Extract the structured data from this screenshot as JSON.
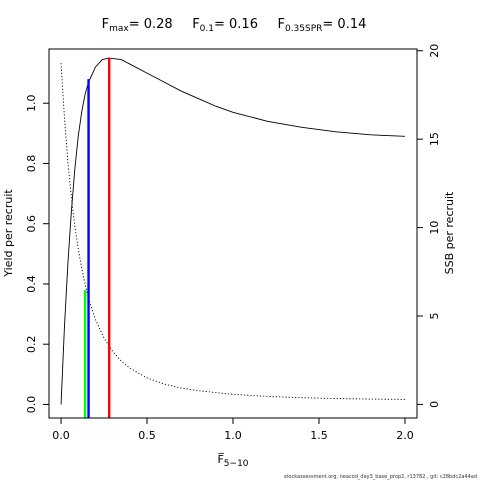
{
  "chart_data": {
    "type": "line",
    "title_parts": [
      {
        "label": "F",
        "sub": "max",
        "value": "= 0.28"
      },
      {
        "label": "F",
        "sub": "0.1",
        "value": "= 0.16"
      },
      {
        "label": "F",
        "sub": "0.35SPR",
        "value": "= 0.14"
      }
    ],
    "xlabel": "F",
    "xlabel_sub": "5−10",
    "ylabel_left": "Yield per recruit",
    "ylabel_right": "SSB per recruit",
    "xlim": [
      -0.07,
      2.07
    ],
    "ylim_left": [
      -0.045,
      1.18
    ],
    "ylim_right": [
      -0.77,
      20.1
    ],
    "x_ticks": [
      0,
      0.5,
      1,
      1.5,
      2
    ],
    "x_tick_labels": [
      "0.0",
      "0.5",
      "1.0",
      "1.5",
      "2.0"
    ],
    "y_left_ticks": [
      0,
      0.2,
      0.4,
      0.6,
      0.8,
      1.0
    ],
    "y_left_tick_labels": [
      "0.0",
      "0.2",
      "0.4",
      "0.6",
      "0.8",
      "1.0"
    ],
    "y_right_ticks": [
      0,
      5,
      10,
      15,
      20
    ],
    "y_right_tick_labels": [
      "0",
      "5",
      "10",
      "15",
      "20"
    ],
    "series": [
      {
        "key": "ypr",
        "axis": "left",
        "style": "solid",
        "x": [
          0,
          0.02,
          0.04,
          0.06,
          0.08,
          0.1,
          0.12,
          0.14,
          0.16,
          0.2,
          0.24,
          0.28,
          0.35,
          0.4,
          0.5,
          0.6,
          0.7,
          0.8,
          0.9,
          1.0,
          1.2,
          1.4,
          1.6,
          1.8,
          2.0
        ],
        "y": [
          0.0,
          0.26,
          0.47,
          0.64,
          0.78,
          0.89,
          0.97,
          1.03,
          1.07,
          1.12,
          1.145,
          1.15,
          1.145,
          1.13,
          1.1,
          1.07,
          1.04,
          1.015,
          0.99,
          0.97,
          0.94,
          0.92,
          0.905,
          0.895,
          0.89
        ]
      },
      {
        "key": "spr",
        "axis": "right",
        "style": "dotted",
        "x": [
          0,
          0.02,
          0.04,
          0.06,
          0.08,
          0.1,
          0.12,
          0.14,
          0.16,
          0.2,
          0.25,
          0.3,
          0.35,
          0.4,
          0.5,
          0.6,
          0.7,
          0.8,
          1.0,
          1.2,
          1.4,
          1.6,
          1.8,
          2.0
        ],
        "y": [
          19.3,
          16.2,
          13.7,
          11.7,
          10.1,
          8.8,
          7.7,
          6.8,
          6.0,
          4.8,
          3.75,
          3.0,
          2.45,
          2.05,
          1.5,
          1.15,
          0.92,
          0.77,
          0.57,
          0.45,
          0.38,
          0.33,
          0.3,
          0.28
        ]
      }
    ],
    "reference_lines": [
      {
        "key": "f_max",
        "x": 0.28,
        "y": 1.15,
        "color": "#ff0000"
      },
      {
        "key": "f_01",
        "x": 0.16,
        "y": 1.08,
        "color": "#0000ff"
      },
      {
        "key": "f_035spr",
        "x": 0.14,
        "y": 0.38,
        "color": "#00ff00"
      }
    ],
    "footer": "stockassessment.org, neacod_day3_base_prop2, r13782 , git: c28bdc2a44ad",
    "grid": false,
    "legend": "none"
  }
}
